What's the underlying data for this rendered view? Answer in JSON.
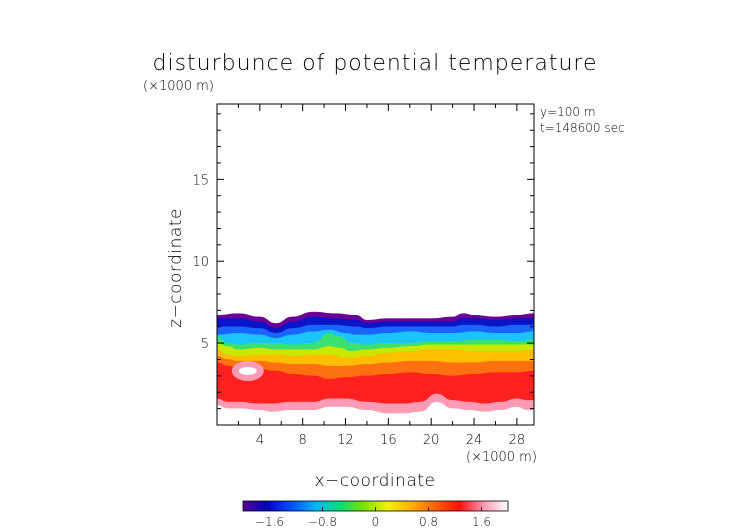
{
  "chart_data": {
    "type": "heatmap",
    "title": "disturbunce of potential temperature",
    "y_unit_label": "(×1000 m)",
    "x_unit_label": "(×1000 m)",
    "xlabel": "x−coordinate",
    "ylabel": "z−coordinate",
    "annotation_y": "y=100 m",
    "annotation_t": "t=148600 sec",
    "xlim": [
      0,
      29.6
    ],
    "ylim": [
      0,
      19.6
    ],
    "x_ticks": [
      4,
      8,
      12,
      16,
      20,
      24,
      28
    ],
    "x_tick_labels": [
      "4",
      "8",
      "12",
      "16",
      "20",
      "24",
      "28"
    ],
    "y_ticks": [
      5,
      10,
      15
    ],
    "y_tick_labels": [
      "5",
      "10",
      "15"
    ],
    "colorbar": {
      "min": -2.0,
      "max": 2.0,
      "ticks": [
        -1.6,
        -0.8,
        0,
        0.8,
        1.6
      ],
      "tick_labels": [
        "−1.6",
        "−0.8",
        "0",
        "0.8",
        "1.6"
      ],
      "colors": [
        "#5a0090",
        "#0000c8",
        "#0050ff",
        "#00b4ff",
        "#00e07c",
        "#7ce000",
        "#f0f000",
        "#ffb000",
        "#ff6000",
        "#ff1010",
        "#ff9ab4",
        "#ffffff"
      ]
    },
    "field_layers": [
      {
        "value": -1.8,
        "color": "#6a0096",
        "top": [
          [
            0,
            6.7
          ],
          [
            2,
            6.8
          ],
          [
            4,
            6.6
          ],
          [
            5.5,
            6.2
          ],
          [
            7,
            6.6
          ],
          [
            9,
            6.9
          ],
          [
            11,
            6.8
          ],
          [
            13,
            6.7
          ],
          [
            14,
            6.4
          ],
          [
            16,
            6.5
          ],
          [
            18,
            6.5
          ],
          [
            20,
            6.5
          ],
          [
            22,
            6.6
          ],
          [
            23,
            6.8
          ],
          [
            24,
            6.7
          ],
          [
            26,
            6.6
          ],
          [
            28,
            6.7
          ],
          [
            29.6,
            6.8
          ]
        ]
      },
      {
        "value": -1.4,
        "color": "#0a14c8",
        "top": [
          [
            0,
            6.5
          ],
          [
            2,
            6.5
          ],
          [
            4,
            6.3
          ],
          [
            5.5,
            5.9
          ],
          [
            7,
            6.3
          ],
          [
            9,
            6.6
          ],
          [
            11,
            6.5
          ],
          [
            13,
            6.4
          ],
          [
            14,
            6.2
          ],
          [
            16,
            6.3
          ],
          [
            18,
            6.3
          ],
          [
            20,
            6.3
          ],
          [
            22,
            6.3
          ],
          [
            23,
            6.5
          ],
          [
            24,
            6.5
          ],
          [
            26,
            6.4
          ],
          [
            28,
            6.5
          ],
          [
            29.6,
            6.5
          ]
        ]
      },
      {
        "value": -0.9,
        "color": "#1a64ff",
        "top": [
          [
            0,
            6.0
          ],
          [
            2,
            6.0
          ],
          [
            4,
            5.9
          ],
          [
            5.5,
            5.6
          ],
          [
            7,
            5.9
          ],
          [
            9,
            6.1
          ],
          [
            11,
            6.1
          ],
          [
            13,
            6.0
          ],
          [
            14,
            5.9
          ],
          [
            16,
            6.0
          ],
          [
            18,
            6.0
          ],
          [
            20,
            6.0
          ],
          [
            22,
            6.0
          ],
          [
            23,
            6.1
          ],
          [
            24,
            6.1
          ],
          [
            26,
            6.0
          ],
          [
            28,
            6.1
          ],
          [
            29.6,
            6.1
          ]
        ]
      },
      {
        "value": -0.4,
        "color": "#1ac4ff",
        "top": [
          [
            0,
            5.5
          ],
          [
            2,
            5.6
          ],
          [
            4,
            5.5
          ],
          [
            5.5,
            5.3
          ],
          [
            7,
            5.5
          ],
          [
            9,
            5.7
          ],
          [
            10.5,
            5.8
          ],
          [
            12,
            5.6
          ],
          [
            13,
            5.5
          ],
          [
            14,
            5.5
          ],
          [
            16,
            5.6
          ],
          [
            18,
            5.7
          ],
          [
            20,
            5.6
          ],
          [
            22,
            5.6
          ],
          [
            24,
            5.7
          ],
          [
            26,
            5.6
          ],
          [
            28,
            5.6
          ],
          [
            29.6,
            5.7
          ]
        ]
      },
      {
        "value": 0.0,
        "color": "#3ce070",
        "top": [
          [
            0,
            5.4
          ],
          [
            1,
            5.0
          ],
          [
            2,
            4.9
          ],
          [
            4,
            5.0
          ],
          [
            5.5,
            5.0
          ],
          [
            7,
            4.9
          ],
          [
            9,
            5.0
          ],
          [
            10.5,
            5.6
          ],
          [
            11.5,
            5.4
          ],
          [
            12.5,
            5.0
          ],
          [
            14,
            4.9
          ],
          [
            16,
            5.0
          ],
          [
            18,
            5.0
          ],
          [
            20,
            5.1
          ],
          [
            22,
            5.1
          ],
          [
            24,
            5.2
          ],
          [
            26,
            5.2
          ],
          [
            28,
            5.1
          ],
          [
            29.6,
            5.2
          ]
        ]
      },
      {
        "value": 0.4,
        "color": "#c8e800",
        "top": [
          [
            0,
            5.0
          ],
          [
            1,
            4.8
          ],
          [
            2,
            4.6
          ],
          [
            4,
            4.7
          ],
          [
            5.5,
            4.6
          ],
          [
            7,
            4.6
          ],
          [
            9,
            4.6
          ],
          [
            10.5,
            4.8
          ],
          [
            11.5,
            4.7
          ],
          [
            12.5,
            4.5
          ],
          [
            14,
            4.6
          ],
          [
            16,
            4.7
          ],
          [
            18,
            4.8
          ],
          [
            20,
            4.9
          ],
          [
            22,
            4.9
          ],
          [
            24,
            4.9
          ],
          [
            26,
            4.9
          ],
          [
            28,
            4.9
          ],
          [
            29.6,
            4.9
          ]
        ]
      },
      {
        "value": 0.8,
        "color": "#ffbe00",
        "top": [
          [
            0,
            4.6
          ],
          [
            1,
            4.3
          ],
          [
            2,
            4.2
          ],
          [
            4,
            4.3
          ],
          [
            5.5,
            4.3
          ],
          [
            7,
            4.2
          ],
          [
            9,
            4.3
          ],
          [
            10.5,
            4.3
          ],
          [
            12,
            4.1
          ],
          [
            14,
            4.2
          ],
          [
            16,
            4.4
          ],
          [
            18,
            4.5
          ],
          [
            20,
            4.6
          ],
          [
            22,
            4.6
          ],
          [
            24,
            4.5
          ],
          [
            26,
            4.5
          ],
          [
            28,
            4.5
          ],
          [
            29.6,
            4.6
          ]
        ]
      },
      {
        "value": 1.2,
        "color": "#ff7010",
        "top": [
          [
            0,
            4.2
          ],
          [
            1,
            4.0
          ],
          [
            2,
            3.9
          ],
          [
            4,
            3.9
          ],
          [
            5.5,
            3.8
          ],
          [
            7,
            3.7
          ],
          [
            9,
            3.7
          ],
          [
            10.5,
            3.6
          ],
          [
            12,
            3.6
          ],
          [
            14,
            3.7
          ],
          [
            16,
            3.8
          ],
          [
            18,
            3.9
          ],
          [
            20,
            3.9
          ],
          [
            22,
            3.8
          ],
          [
            24,
            3.8
          ],
          [
            26,
            3.9
          ],
          [
            28,
            3.9
          ],
          [
            29.6,
            3.9
          ]
        ]
      },
      {
        "value": 1.6,
        "color": "#ff2020",
        "top": [
          [
            0,
            3.8
          ],
          [
            1,
            3.6
          ],
          [
            2,
            3.5
          ],
          [
            4,
            3.4
          ],
          [
            5.5,
            3.3
          ],
          [
            7,
            3.1
          ],
          [
            9,
            3.0
          ],
          [
            10.5,
            2.8
          ],
          [
            12,
            2.9
          ],
          [
            14,
            3.0
          ],
          [
            16,
            3.1
          ],
          [
            18,
            3.2
          ],
          [
            20,
            3.1
          ],
          [
            22,
            3.0
          ],
          [
            24,
            3.1
          ],
          [
            26,
            3.2
          ],
          [
            28,
            3.2
          ],
          [
            29.6,
            3.3
          ]
        ]
      },
      {
        "value": 1.9,
        "color": "#ff9ab4",
        "top": [
          [
            0,
            1.6
          ],
          [
            1,
            1.4
          ],
          [
            2,
            1.4
          ],
          [
            4,
            1.3
          ],
          [
            5,
            1.3
          ],
          [
            7,
            1.4
          ],
          [
            9,
            1.4
          ],
          [
            10.5,
            1.6
          ],
          [
            12,
            1.6
          ],
          [
            14,
            1.4
          ],
          [
            16,
            1.3
          ],
          [
            17.5,
            1.3
          ],
          [
            19,
            1.4
          ],
          [
            20.5,
            1.9
          ],
          [
            22,
            1.5
          ],
          [
            23.5,
            1.4
          ],
          [
            25,
            1.3
          ],
          [
            26.5,
            1.4
          ],
          [
            28,
            1.6
          ],
          [
            29,
            1.5
          ],
          [
            29.6,
            1.5
          ]
        ]
      },
      {
        "value": 2.0,
        "color": "#ffffff",
        "top": [
          [
            0,
            1.2
          ],
          [
            1,
            1.0
          ],
          [
            2,
            1.0
          ],
          [
            4,
            0.9
          ],
          [
            5,
            0.8
          ],
          [
            7,
            0.9
          ],
          [
            9,
            0.9
          ],
          [
            10.5,
            1.1
          ],
          [
            12,
            1.1
          ],
          [
            14,
            0.9
          ],
          [
            16,
            0.7
          ],
          [
            17.5,
            0.7
          ],
          [
            19,
            0.8
          ],
          [
            20.5,
            1.4
          ],
          [
            22,
            1.0
          ],
          [
            23.5,
            0.9
          ],
          [
            25,
            0.8
          ],
          [
            26.5,
            0.9
          ],
          [
            28,
            1.1
          ],
          [
            29,
            0.9
          ],
          [
            29.6,
            0.9
          ]
        ]
      }
    ],
    "hot_spot": {
      "x": 2.5,
      "z": 3.3,
      "value": 2.0
    }
  }
}
